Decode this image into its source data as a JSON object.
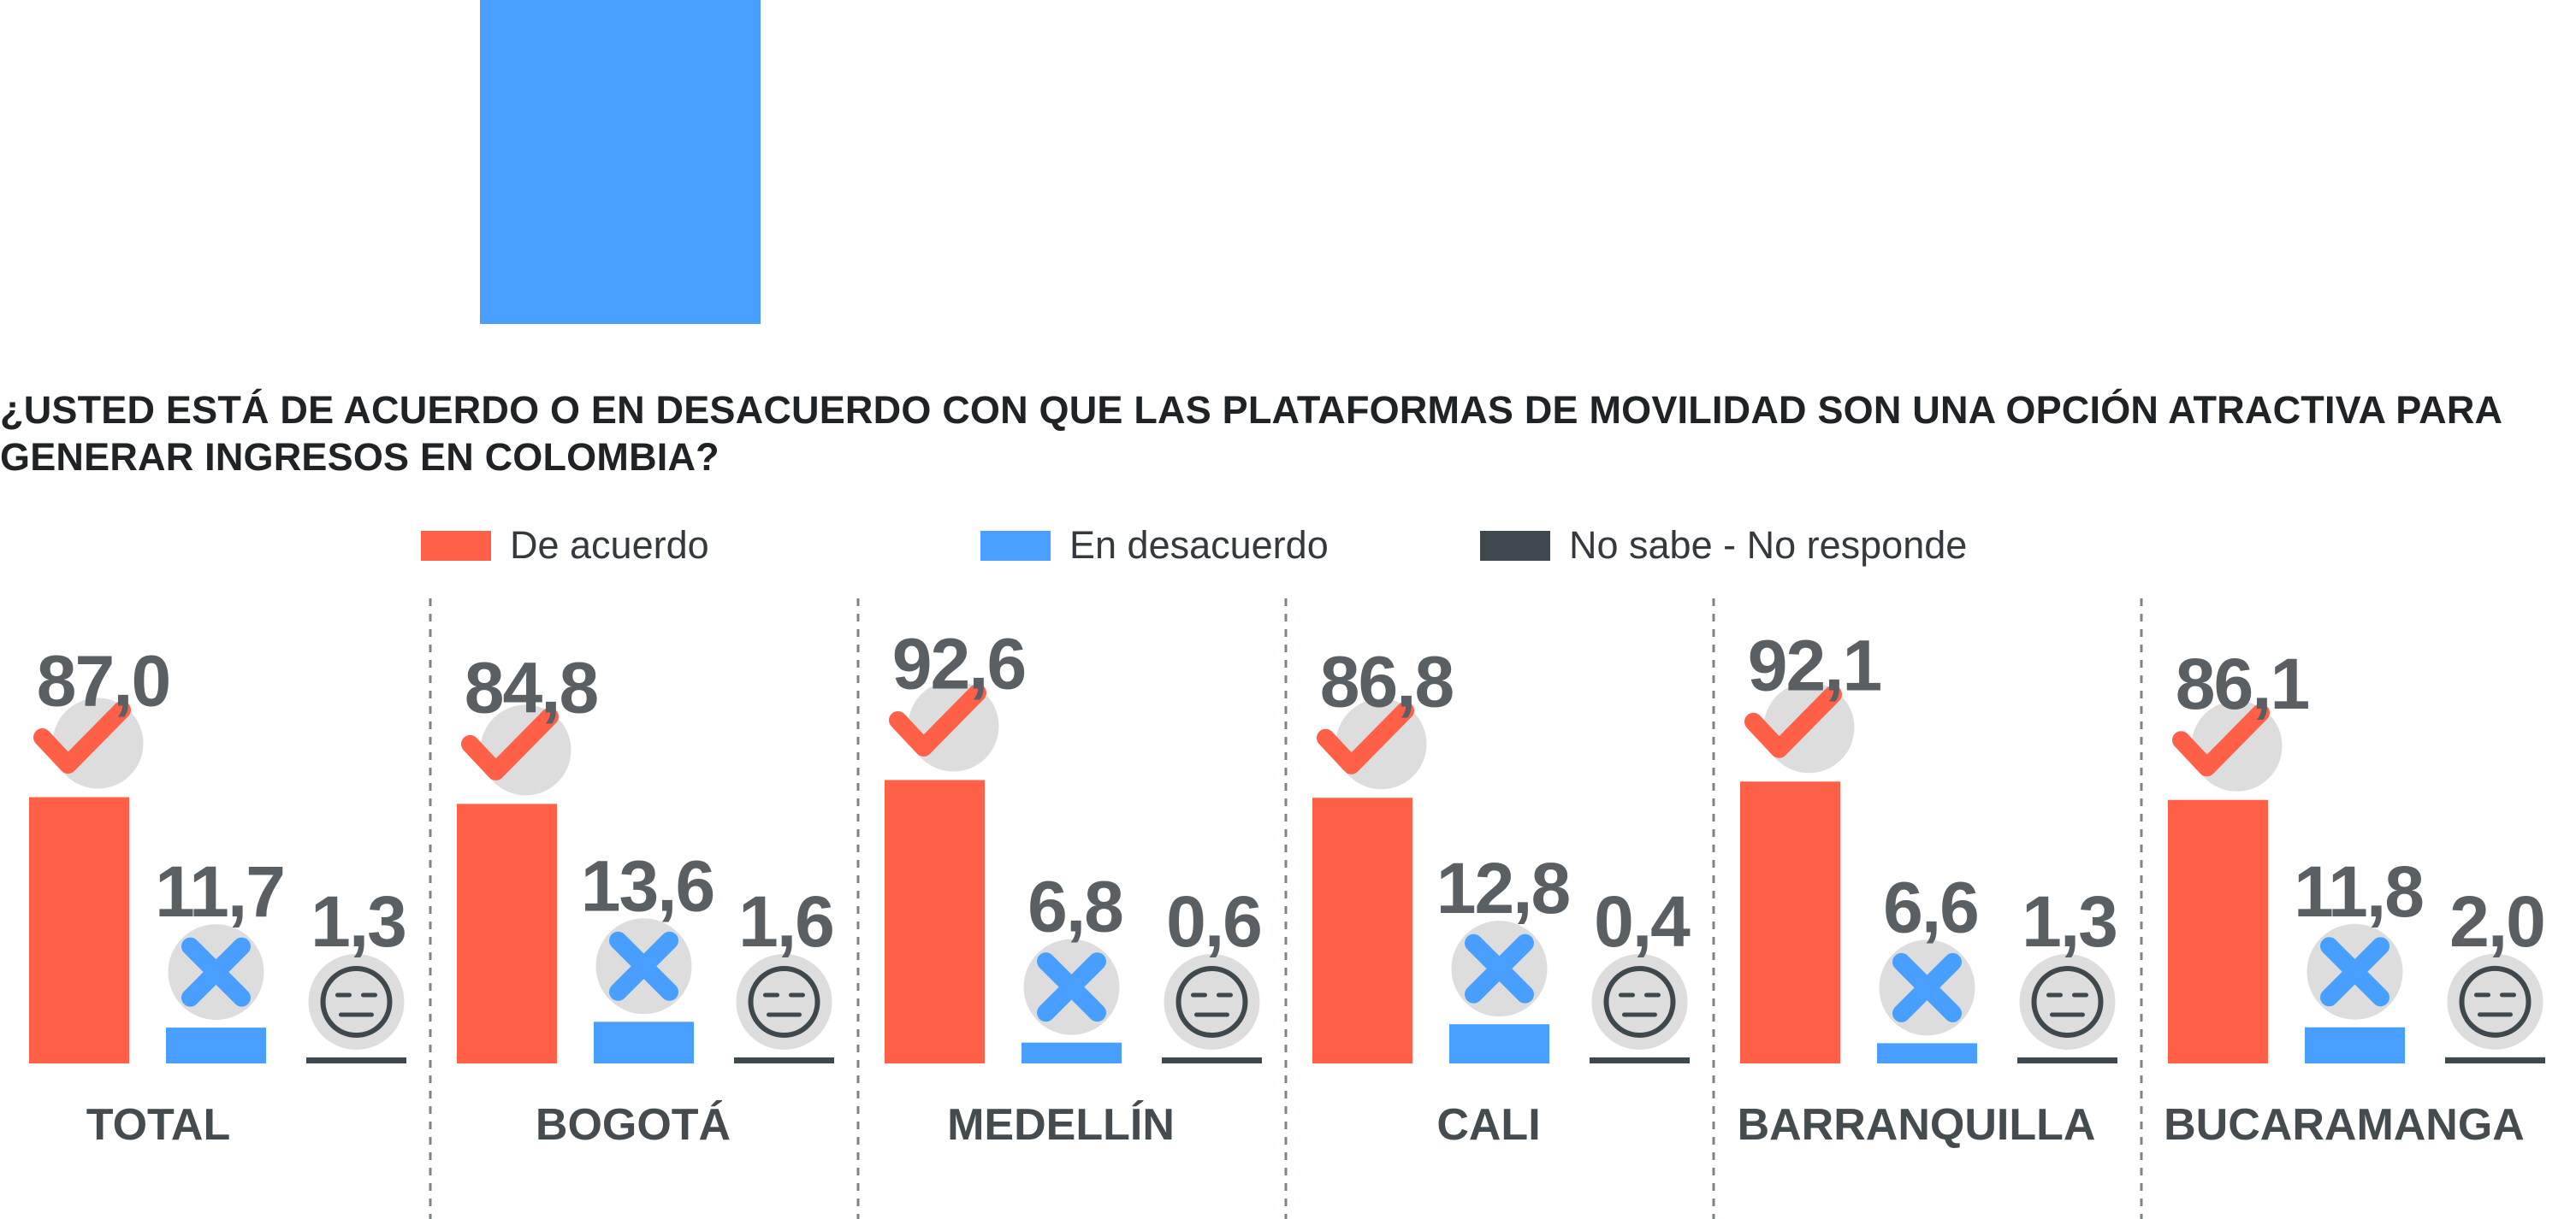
{
  "colors": {
    "agree": "#FF6047",
    "disagree": "#489FFF",
    "no_answer": "#3F484C",
    "label_gray": "#595F63",
    "circle_gray": "#DDDDDD",
    "decor_block": "#489FFF"
  },
  "question": "¿USTED ESTÁ DE ACUERDO O EN DESACUERDO CON QUE LAS PLATAFORMAS DE MOVILIDAD SON UNA OPCIÓN ATRACTIVA PARA GENERAR INGRESOS EN COLOMBIA?",
  "legend": [
    {
      "label": "De acuerdo",
      "color": "#FF6047"
    },
    {
      "label": "En desacuerdo",
      "color": "#489FFF"
    },
    {
      "label": "No sabe - No responde",
      "color": "#3F484C"
    }
  ],
  "chart_data": {
    "type": "bar",
    "title": "¿USTED ESTÁ DE ACUERDO O EN DESACUERDO CON QUE LAS PLATAFORMAS DE MOVILIDAD SON UNA OPCIÓN ATRACTIVA PARA GENERAR INGRESOS EN COLOMBIA?",
    "categories": [
      "TOTAL",
      "BOGOTÁ",
      "MEDELLÍN",
      "CALI",
      "BARRANQUILLA",
      "BUCARAMANGA"
    ],
    "series": [
      {
        "name": "De acuerdo",
        "values": [
          87.0,
          84.8,
          92.6,
          86.8,
          92.1,
          86.1
        ],
        "labels": [
          "87,0",
          "84,8",
          "92,6",
          "86,8",
          "92,1",
          "86,1"
        ],
        "icon": "check-icon"
      },
      {
        "name": "En desacuerdo",
        "values": [
          11.7,
          13.6,
          6.8,
          12.8,
          6.6,
          11.8
        ],
        "labels": [
          "11,7",
          "13,6",
          "6,8",
          "12,8",
          "6,6",
          "11,8"
        ],
        "icon": "cross-icon"
      },
      {
        "name": "No sabe - No responde",
        "values": [
          1.3,
          1.6,
          0.6,
          0.4,
          1.3,
          2.0
        ],
        "labels": [
          "1,3",
          "1,6",
          "0,6",
          "0,4",
          "1,3",
          "2,0"
        ],
        "icon": "neutral-face-icon"
      }
    ],
    "ylim": [
      0,
      100
    ],
    "xlabel": "",
    "ylabel": "",
    "grid": false,
    "legend_position": "top"
  }
}
